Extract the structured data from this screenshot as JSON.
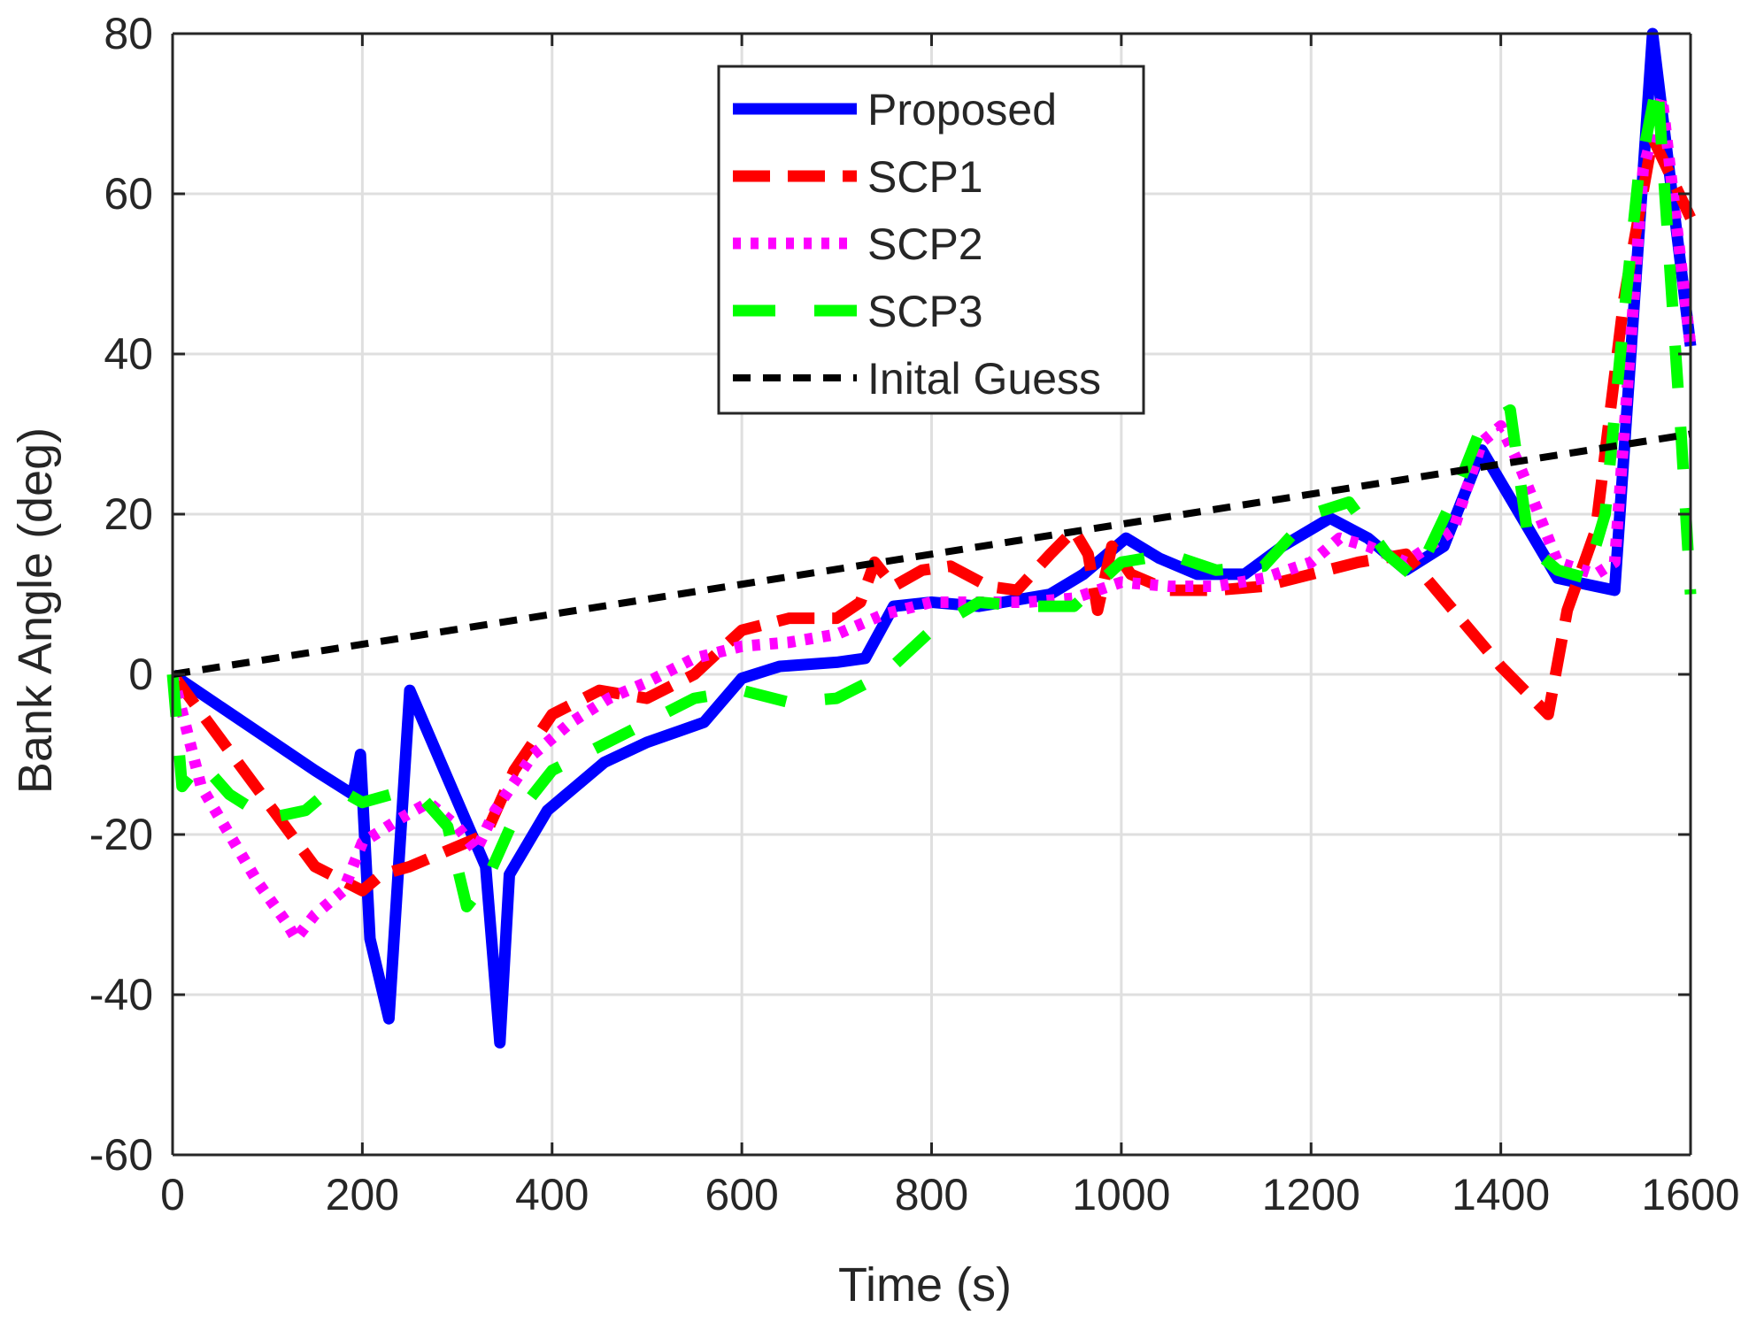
{
  "chart_data": {
    "type": "line",
    "title": "",
    "xlabel": "Time (s)",
    "ylabel": "Bank Angle (deg)",
    "xlim": [
      0,
      1600
    ],
    "ylim": [
      -60,
      80
    ],
    "xticks": [
      0,
      200,
      400,
      600,
      800,
      1000,
      1200,
      1400,
      1600
    ],
    "yticks": [
      -60,
      -40,
      -20,
      0,
      20,
      40,
      60,
      80
    ],
    "xtick_labels": [
      "0",
      "200",
      "400",
      "600",
      "800",
      "1000",
      "1200",
      "1400",
      "1600"
    ],
    "ytick_labels": [
      "-60",
      "-40",
      "-20",
      "0",
      "20",
      "40",
      "60",
      "80"
    ],
    "grid": true,
    "legend_position": "top-center",
    "series": [
      {
        "name": "Proposed",
        "color": "#0000ff",
        "style": "solid",
        "x": [
          0,
          50,
          100,
          150,
          190,
          198,
          208,
          228,
          250,
          290,
          330,
          345,
          355,
          395,
          425,
          455,
          500,
          560,
          600,
          640,
          700,
          730,
          760,
          800,
          850,
          925,
          960,
          1005,
          1040,
          1080,
          1130,
          1170,
          1220,
          1260,
          1300,
          1340,
          1380,
          1420,
          1460,
          1500,
          1520,
          1560,
          1600
        ],
        "values": [
          0,
          -4,
          -8,
          -12,
          -15,
          -10,
          -33,
          -43,
          -2,
          -13,
          -24,
          -46,
          -25,
          -17,
          -14,
          -11,
          -8.5,
          -6,
          -0.5,
          1,
          1.5,
          2,
          8.5,
          9,
          8.5,
          10,
          12.5,
          17,
          14.5,
          12.5,
          12.5,
          16,
          19.5,
          17,
          13,
          16,
          28,
          20,
          12,
          11,
          10.5,
          80,
          41
        ]
      },
      {
        "name": "SCP1",
        "color": "#ff0000",
        "style": "dashed",
        "x": [
          0,
          50,
          100,
          150,
          200,
          220,
          250,
          290,
          330,
          360,
          400,
          450,
          500,
          550,
          600,
          650,
          700,
          725,
          740,
          760,
          790,
          820,
          860,
          890,
          925,
          950,
          965,
          975,
          990,
          1010,
          1050,
          1100,
          1150,
          1200,
          1250,
          1300,
          1350,
          1400,
          1450,
          1470,
          1500,
          1530,
          1560,
          1600
        ],
        "values": [
          0,
          -8,
          -16,
          -24,
          -27,
          -25,
          -24,
          -22,
          -20,
          -12,
          -5,
          -2,
          -3,
          0,
          5.5,
          7,
          7,
          9,
          14,
          11,
          13,
          13.5,
          11,
          10.5,
          15,
          18,
          15,
          8,
          16,
          12.5,
          10.5,
          10.5,
          11,
          12.5,
          14,
          15,
          8,
          1,
          -5,
          8,
          18,
          47,
          67,
          57
        ]
      },
      {
        "name": "SCP2",
        "color": "#ff00ff",
        "style": "dotted",
        "x": [
          0,
          30,
          60,
          90,
          120,
          130,
          150,
          180,
          200,
          240,
          270,
          300,
          320,
          340,
          380,
          420,
          460,
          500,
          550,
          600,
          650,
          700,
          750,
          800,
          850,
          900,
          950,
          1000,
          1050,
          1100,
          1150,
          1200,
          1230,
          1260,
          1300,
          1350,
          1380,
          1400,
          1420,
          1460,
          1500,
          1520,
          1550,
          1570,
          1600
        ],
        "values": [
          0,
          -14,
          -20,
          -26,
          -31,
          -33,
          -30,
          -27,
          -21,
          -18,
          -16,
          -19,
          -22,
          -17,
          -10,
          -6,
          -3,
          -1,
          2,
          3.5,
          4,
          5,
          7.5,
          9,
          9,
          9,
          9.5,
          11.5,
          11,
          11,
          12,
          14,
          17,
          16,
          14,
          18,
          29,
          31,
          26,
          14,
          12.5,
          14,
          63,
          72,
          41
        ]
      },
      {
        "name": "SCP3",
        "color": "#00ff00",
        "style": "longdash",
        "x": [
          0,
          10,
          30,
          60,
          100,
          140,
          170,
          200,
          230,
          260,
          290,
          310,
          330,
          360,
          400,
          450,
          500,
          550,
          600,
          650,
          700,
          750,
          800,
          850,
          900,
          950,
          1000,
          1050,
          1100,
          1150,
          1200,
          1240,
          1280,
          1310,
          1350,
          1380,
          1410,
          1430,
          1460,
          1490,
          1510,
          1530,
          1545,
          1565,
          1590,
          1600
        ],
        "values": [
          0,
          -14,
          -11,
          -15,
          -18,
          -17,
          -14,
          -16,
          -15,
          -15,
          -19,
          -29,
          -26,
          -18,
          -12,
          -9,
          -6,
          -3,
          -2,
          -3.5,
          -3,
          0,
          5.5,
          9,
          8.5,
          8.5,
          14,
          15,
          13,
          13.5,
          20,
          21.5,
          15,
          12,
          22,
          31,
          33,
          16,
          13,
          12,
          20,
          45,
          62,
          74,
          30,
          10
        ]
      },
      {
        "name": "Inital Guess",
        "color": "#000000",
        "style": "shortdash",
        "x": [
          0,
          1600
        ],
        "values": [
          0,
          30
        ]
      }
    ]
  }
}
